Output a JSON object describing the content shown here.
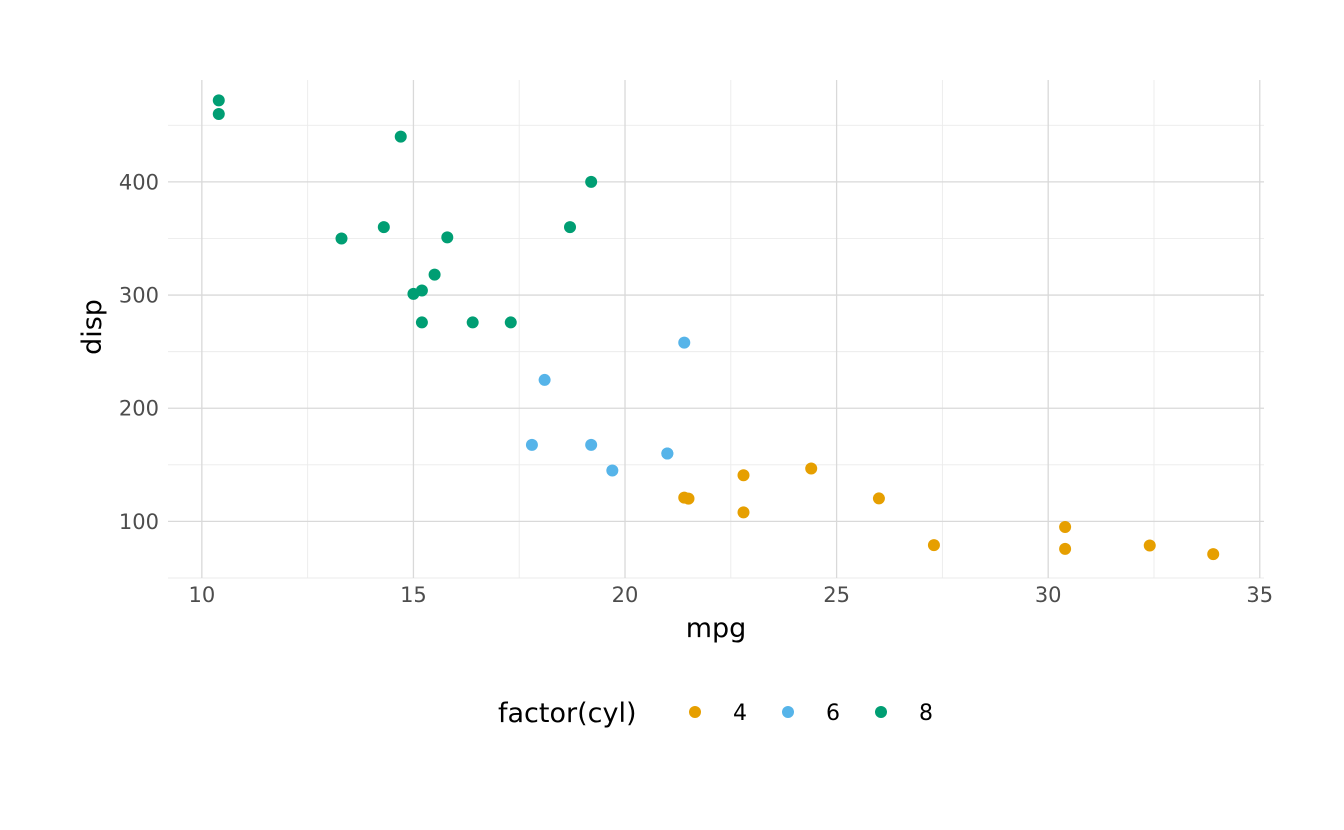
{
  "chart_data": {
    "type": "scatter",
    "xlabel": "mpg",
    "ylabel": "disp",
    "xlim": [
      9.2,
      35.1
    ],
    "ylim": [
      50,
      490
    ],
    "x_ticks": [
      10,
      15,
      20,
      25,
      30,
      35
    ],
    "y_ticks": [
      100,
      200,
      300,
      400
    ],
    "x_minor": [
      12.5,
      17.5,
      22.5,
      27.5,
      32.5
    ],
    "y_minor": [
      50,
      150,
      250,
      350,
      450
    ],
    "grid": true,
    "legend": {
      "title": "factor(cyl)",
      "position": "bottom",
      "entries": [
        "4",
        "6",
        "8"
      ]
    },
    "series": [
      {
        "name": "4",
        "color": "#E69F00",
        "points": [
          [
            22.8,
            108
          ],
          [
            24.4,
            146.7
          ],
          [
            22.8,
            140.8
          ],
          [
            32.4,
            78.7
          ],
          [
            30.4,
            75.7
          ],
          [
            33.9,
            71.1
          ],
          [
            21.5,
            120.1
          ],
          [
            27.3,
            79
          ],
          [
            26.0,
            120.3
          ],
          [
            30.4,
            95.1
          ],
          [
            21.4,
            121
          ]
        ]
      },
      {
        "name": "6",
        "color": "#56B4E9",
        "points": [
          [
            21.0,
            160
          ],
          [
            21.0,
            160
          ],
          [
            21.4,
            258
          ],
          [
            18.1,
            225
          ],
          [
            19.2,
            167.6
          ],
          [
            17.8,
            167.6
          ],
          [
            19.7,
            145
          ]
        ]
      },
      {
        "name": "8",
        "color": "#009E73",
        "points": [
          [
            18.7,
            360
          ],
          [
            14.3,
            360
          ],
          [
            16.4,
            275.8
          ],
          [
            17.3,
            275.8
          ],
          [
            15.2,
            275.8
          ],
          [
            10.4,
            472
          ],
          [
            10.4,
            460
          ],
          [
            14.7,
            440
          ],
          [
            15.5,
            318
          ],
          [
            15.2,
            304
          ],
          [
            13.3,
            350
          ],
          [
            19.2,
            400
          ],
          [
            15.8,
            351
          ],
          [
            15.0,
            301
          ]
        ]
      }
    ]
  }
}
